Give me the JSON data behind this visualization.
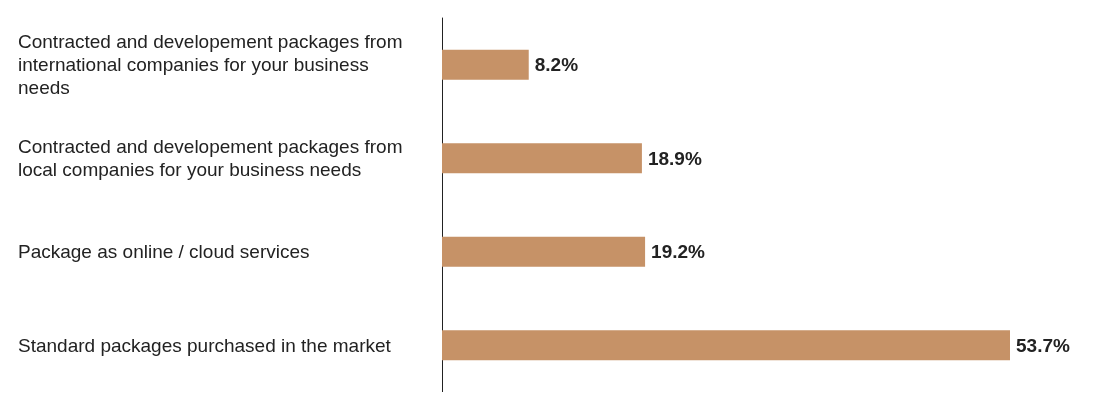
{
  "chart_data": {
    "type": "bar",
    "orientation": "horizontal",
    "categories": [
      "Contracted and developement packages from international companies for your business needs",
      "Contracted and developement packages from local companies for your business needs",
      "Package as online / cloud services",
      "Standard packages purchased in the market"
    ],
    "values": [
      8.2,
      18.9,
      19.2,
      53.7
    ],
    "value_labels": [
      "8.2%",
      "18.9%",
      "19.2%",
      "53.7%"
    ],
    "color": "#c69267"
  }
}
